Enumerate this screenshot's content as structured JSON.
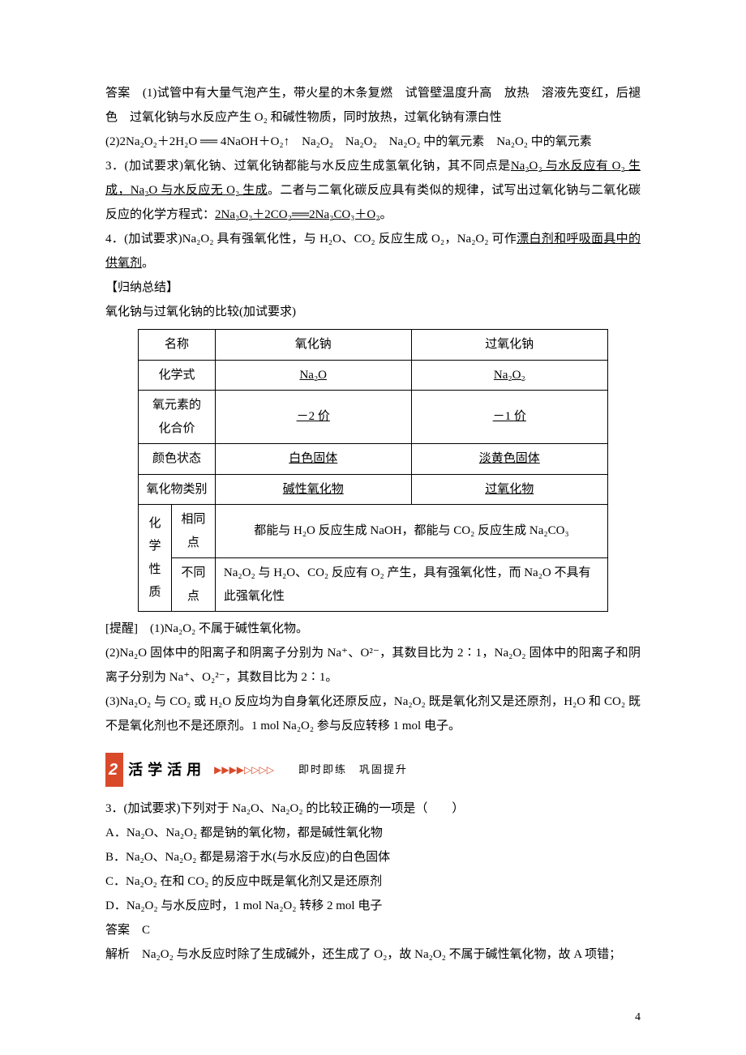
{
  "answer_label": "答案",
  "answer_text": "　(1)试管中有大量气泡产生，带火星的木条复燃　试管壁温度升高　放热　溶液先变红，后褪色　过氧化钠与水反应产生 O₂ 和碱性物质，同时放热，过氧化钠有漂白性",
  "answer_eq": "(2)2Na₂O₂＋2H₂O ══ 4NaOH＋O₂↑　Na₂O₂　Na₂O₂　Na₂O₂ 中的氧元素　Na₂O₂ 中的氧元素",
  "q3_pre": "3．(加试要求)氧化钠、过氧化钠都能与水反应生成氢氧化钠，其不同点是",
  "q3_u1": "Na₂O₂ 与水反应有 O₂ 生成，Na₂O 与水反应无 O₂ 生成",
  "q3_post": "。二者与二氧化碳反应具有类似的规律，试写出过氧化钠与二氧化碳反应的化学方程式：",
  "q3_eq": "2Na₂O₂＋2CO₂══2Na₂CO₃＋O₂",
  "q3_end": "。",
  "q4_pre": "4．(加试要求)Na₂O₂ 具有强氧化性，与 H₂O、CO₂ 反应生成 O₂，Na₂O₂ 可作",
  "q4_u": "漂白剂和呼吸面具中的供氧剂",
  "q4_end": "。",
  "summary_heading": "【归纳总结】",
  "summary_sub": "氧化钠与过氧化钠的比较(加试要求)",
  "table": {
    "h_name": "名称",
    "h_na2o": "氧化钠",
    "h_na2o2": "过氧化钠",
    "r_formula": "化学式",
    "v_na2o": "Na₂O",
    "v_na2o2": "Na₂O₂",
    "r_valence": "氧元素的\n化合价",
    "v_val1": "－2 价",
    "v_val2": "－1 价",
    "r_state": "颜色状态",
    "v_state1": "白色固体",
    "v_state2": "淡黄色固体",
    "r_type": "氧化物类别",
    "v_type1": "碱性氧化物",
    "v_type2": "过氧化物",
    "r_chem": "化学\n性质",
    "r_same": "相同点",
    "v_same": "都能与 H₂O 反应生成 NaOH，都能与 CO₂ 反应生成 Na₂CO₃",
    "r_diff": "不同点",
    "v_diff": "Na₂O₂ 与 H₂O、CO₂ 反应有 O₂ 产生，具有强氧化性，而 Na₂O 不具有此强氧化性"
  },
  "remind_label": "[提醒]",
  "remind1": "　(1)Na₂O₂ 不属于碱性氧化物。",
  "remind2": "(2)Na₂O 固体中的阳离子和阴离子分别为 Na⁺、O²⁻，其数目比为 2∶1，Na₂O₂ 固体中的阳离子和阴离子分别为 Na⁺、O₂²⁻，其数目比为 2∶1。",
  "remind3": "(3)Na₂O₂ 与 CO₂ 或 H₂O 反应均为自身氧化还原反应，Na₂O₂ 既是氧化剂又是还原剂，H₂O 和 CO₂ 既不是氧化剂也不是还原剂。1 mol Na₂O₂ 参与反应转移 1 mol 电子。",
  "badge": {
    "num": "2",
    "title": "活学活用",
    "sub": "即时即练　巩固提升"
  },
  "ex3_q": "3．(加试要求)下列对于 Na₂O、Na₂O₂ 的比较正确的一项是（　　）",
  "ex3_a": "A．Na₂O、Na₂O₂ 都是钠的氧化物，都是碱性氧化物",
  "ex3_b": "B．Na₂O、Na₂O₂ 都是易溶于水(与水反应)的白色固体",
  "ex3_c": "C．Na₂O₂ 在和 CO₂ 的反应中既是氧化剂又是还原剂",
  "ex3_d": "D．Na₂O₂ 与水反应时，1 mol Na₂O₂ 转移 2 mol 电子",
  "ex3_ans_label": "答案",
  "ex3_ans": "　C",
  "ex3_exp_label": "解析",
  "ex3_exp": "　Na₂O₂ 与水反应时除了生成碱外，还生成了 O₂，故 Na₂O₂ 不属于碱性氧化物，故 A 项错；",
  "page_num": "4"
}
